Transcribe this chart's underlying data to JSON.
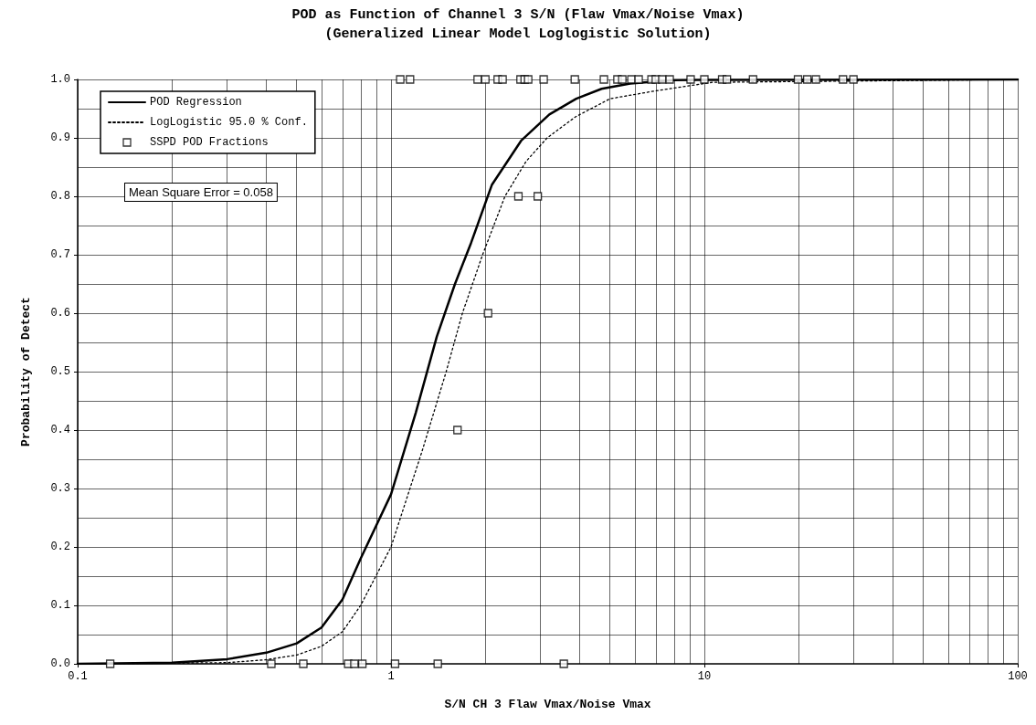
{
  "chart_data": {
    "type": "line",
    "title": "POD as Function of Channel 3 S/N (Flaw Vmax/Noise Vmax)",
    "subtitle": "(Generalized Linear Model Loglogistic Solution)",
    "xlabel": "S/N CH 3 Flaw Vmax/Noise Vmax",
    "ylabel": "Probability of Detect",
    "log": "x",
    "xlim": [
      0.1,
      100
    ],
    "xticks": [
      0.1,
      {
        "value": 0.2,
        "label": null
      },
      {
        "value": 0.3,
        "label": null
      },
      {
        "value": 0.4,
        "label": null
      },
      {
        "value": 0.5,
        "label": null
      },
      {
        "value": 0.6,
        "label": null
      },
      {
        "value": 0.7,
        "label": null
      },
      {
        "value": 0.8,
        "label": null
      },
      {
        "value": 0.9,
        "label": null
      },
      1,
      {
        "value": 2,
        "label": null
      },
      {
        "value": 3,
        "label": null
      },
      {
        "value": 4,
        "label": null
      },
      {
        "value": 5,
        "label": null
      },
      {
        "value": 6,
        "label": null
      },
      {
        "value": 7,
        "label": null
      },
      {
        "value": 8,
        "label": null
      },
      {
        "value": 9,
        "label": null
      },
      10,
      {
        "value": 20,
        "label": null
      },
      {
        "value": 30,
        "label": null
      },
      {
        "value": 40,
        "label": null
      },
      {
        "value": 50,
        "label": null
      },
      {
        "value": 60,
        "label": null
      },
      {
        "value": 70,
        "label": null
      },
      {
        "value": 80,
        "label": null
      },
      {
        "value": 90,
        "label": null
      },
      100
    ],
    "ylim": [
      0,
      1
    ],
    "yticks": [
      {
        "value": 0,
        "label": "0.0"
      },
      {
        "value": 0.05,
        "label": null
      },
      0.1,
      {
        "value": 0.15,
        "label": null
      },
      0.2,
      {
        "value": 0.25,
        "label": null
      },
      0.3,
      {
        "value": 0.35,
        "label": null
      },
      0.4,
      {
        "value": 0.45,
        "label": null
      },
      0.5,
      {
        "value": 0.55,
        "label": null
      },
      0.6,
      {
        "value": 0.65,
        "label": null
      },
      0.7,
      {
        "value": 0.75,
        "label": null
      },
      0.8,
      {
        "value": 0.85,
        "label": null
      },
      0.9,
      {
        "value": 0.95,
        "label": null
      },
      {
        "value": 1,
        "label": "1.0"
      }
    ],
    "grid": true,
    "legend": "top left",
    "annotations": [
      "Mean Square Error = 0.058"
    ],
    "series": [
      {
        "name": "POD Regression",
        "color": "#000000",
        "line_style": "solid",
        "marker": "none",
        "x": [
          0.1,
          0.2,
          0.3,
          0.4,
          0.5,
          0.6,
          0.7,
          0.8,
          1.0,
          1.2,
          1.4,
          1.6,
          1.8,
          2.1,
          2.6,
          3.2,
          3.9,
          4.7,
          5.8,
          8,
          100
        ],
        "values": [
          0,
          0.002,
          0.008,
          0.019,
          0.035,
          0.062,
          0.11,
          0.18,
          0.29,
          0.43,
          0.56,
          0.65,
          0.72,
          0.82,
          0.895,
          0.94,
          0.967,
          0.984,
          0.993,
          0.999,
          1.0
        ]
      },
      {
        "name": "LogLogistic 95.0 % Conf.",
        "color": "#000000",
        "line_style": "dotted",
        "marker": "none",
        "x": [
          0.1,
          0.3,
          0.4,
          0.5,
          0.6,
          0.7,
          0.8,
          1.0,
          1.26,
          1.5,
          1.69,
          1.96,
          2.31,
          2.7,
          3.15,
          3.88,
          5,
          6.9,
          10.6,
          100
        ],
        "values": [
          0,
          0.002,
          0.007,
          0.015,
          0.03,
          0.055,
          0.1,
          0.2,
          0.366,
          0.5,
          0.6,
          0.7,
          0.8,
          0.86,
          0.9,
          0.936,
          0.967,
          0.98,
          0.995,
          1.0
        ]
      },
      {
        "name": "SSPD POD Fractions",
        "type": "scatter",
        "color": "#000000",
        "marker": "square",
        "x": [
          1.07,
          1.15,
          1.89,
          2.0,
          2.19,
          2.27,
          2.59,
          2.67,
          2.74,
          3.07,
          3.86,
          4.78,
          5.28,
          5.47,
          5.85,
          6.17,
          6.78,
          7.0,
          7.34,
          7.75,
          9.04,
          10.0,
          11.4,
          11.8,
          14.3,
          19.9,
          21.3,
          22.7,
          27.7,
          29.9,
          2.55,
          2.94,
          2.04,
          1.63,
          0.127,
          0.415,
          0.525,
          0.73,
          0.764,
          0.81,
          1.03,
          1.41,
          3.56
        ],
        "values": [
          1,
          1,
          1,
          1,
          1,
          1,
          1,
          1,
          1,
          1,
          1,
          1,
          1,
          1,
          1,
          1,
          1,
          1,
          1,
          1,
          1,
          1,
          1,
          1,
          1,
          1,
          1,
          1,
          1,
          1,
          0.8,
          0.8,
          0.6,
          0.4,
          0,
          0,
          0,
          0,
          0,
          0,
          0,
          0,
          0
        ]
      }
    ]
  }
}
